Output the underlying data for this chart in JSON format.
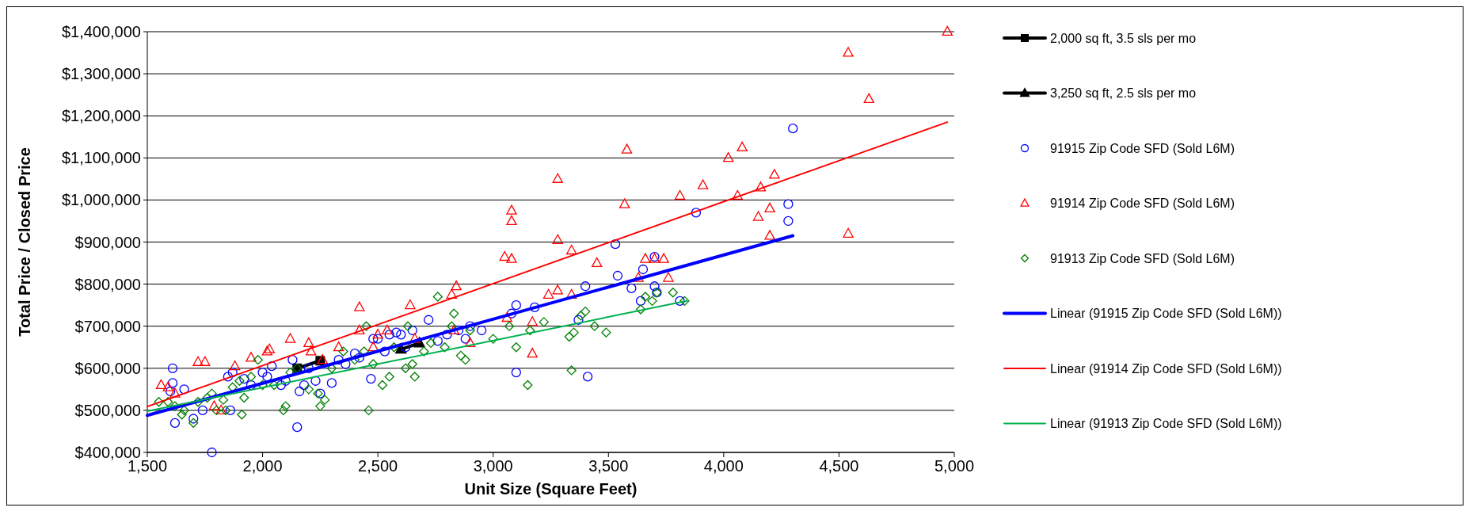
{
  "chart_data": {
    "type": "scatter",
    "xlabel": "Unit Size (Square Feet)",
    "ylabel": "Total Price / Closed Price",
    "xlim": [
      1500,
      5000
    ],
    "ylim": [
      400000,
      1400000
    ],
    "xticks": [
      {
        "value": 1500,
        "label": "1,500"
      },
      {
        "value": 2000,
        "label": "2,000"
      },
      {
        "value": 2500,
        "label": "2,500"
      },
      {
        "value": 3000,
        "label": "3,000"
      },
      {
        "value": 3500,
        "label": "3,500"
      },
      {
        "value": 4000,
        "label": "4,000"
      },
      {
        "value": 4500,
        "label": "4,500"
      },
      {
        "value": 5000,
        "label": "5,000"
      }
    ],
    "yticks": [
      {
        "value": 400000,
        "label": "$400,000"
      },
      {
        "value": 500000,
        "label": "$500,000"
      },
      {
        "value": 600000,
        "label": "$600,000"
      },
      {
        "value": 700000,
        "label": "$700,000"
      },
      {
        "value": 800000,
        "label": "$800,000"
      },
      {
        "value": 900000,
        "label": "$900,000"
      },
      {
        "value": 1000000,
        "label": "$1,000,000"
      },
      {
        "value": 1100000,
        "label": "$1,100,000"
      },
      {
        "value": 1200000,
        "label": "$1,200,000"
      },
      {
        "value": 1300000,
        "label": "$1,300,000"
      },
      {
        "value": 1400000,
        "label": "$1,400,000"
      }
    ],
    "grid": "y",
    "legend": "right",
    "series": [
      {
        "name": "2,000 sq ft, 3.5 sls per mo",
        "type": "line",
        "marker": "square",
        "color": "#000000",
        "x": [
          2150,
          2250
        ],
        "values": [
          600000,
          618000
        ]
      },
      {
        "name": "3,250 sq ft, 2.5 sls per mo",
        "type": "line",
        "marker": "triangle",
        "color": "#000000",
        "x": [
          2600,
          2680
        ],
        "values": [
          645000,
          660000
        ]
      },
      {
        "name": "91915 Zip Code SFD (Sold L6M)",
        "marker": "circle",
        "color": "#0000ff",
        "x": [
          1610,
          1610,
          1600,
          1620,
          1660,
          1700,
          1740,
          1780,
          1850,
          1860,
          1870,
          1920,
          1950,
          2000,
          2020,
          2040,
          2080,
          2100,
          2130,
          2150,
          2160,
          2180,
          2200,
          2230,
          2250,
          2300,
          2330,
          2360,
          2400,
          2420,
          2470,
          2480,
          2500,
          2530,
          2550,
          2580,
          2600,
          2620,
          2650,
          2720,
          2760,
          2800,
          2850,
          2880,
          2900,
          2950,
          3080,
          3100,
          3100,
          3180,
          3370,
          3400,
          3410,
          3530,
          3540,
          3600,
          3640,
          3650,
          3700,
          3700,
          3710,
          3810,
          3880,
          4280,
          4280,
          4300
        ],
        "values": [
          600000,
          565000,
          545000,
          470000,
          550000,
          480000,
          500000,
          400000,
          580000,
          500000,
          590000,
          575000,
          560000,
          590000,
          580000,
          605000,
          560000,
          570000,
          620000,
          460000,
          545000,
          560000,
          600000,
          570000,
          540000,
          565000,
          620000,
          610000,
          635000,
          625000,
          575000,
          670000,
          670000,
          640000,
          680000,
          685000,
          680000,
          650000,
          690000,
          715000,
          665000,
          680000,
          690000,
          670000,
          700000,
          690000,
          730000,
          750000,
          590000,
          745000,
          715000,
          795000,
          580000,
          895000,
          820000,
          790000,
          760000,
          835000,
          865000,
          795000,
          780000,
          760000,
          970000,
          990000,
          950000,
          1170000
        ]
      },
      {
        "name": "91914 Zip Code SFD (Sold L6M)",
        "marker": "triangle",
        "color": "#ff0000",
        "x": [
          1560,
          1590,
          1620,
          1720,
          1750,
          1790,
          1820,
          1880,
          1950,
          2030,
          2020,
          2120,
          2200,
          2210,
          2260,
          2330,
          2420,
          2420,
          2480,
          2500,
          2540,
          2640,
          2660,
          2820,
          2840,
          2830,
          2900,
          3050,
          3080,
          3080,
          3080,
          3060,
          3170,
          3170,
          3240,
          3280,
          3280,
          3280,
          3340,
          3340,
          3450,
          3570,
          3580,
          3630,
          3660,
          3700,
          3740,
          3760,
          3810,
          3910,
          4020,
          4080,
          4060,
          4160,
          4200,
          4200,
          4150,
          4220,
          4540,
          4540,
          4630,
          4970
        ],
        "values": [
          560000,
          555000,
          540000,
          615000,
          615000,
          510000,
          500000,
          605000,
          625000,
          645000,
          640000,
          670000,
          660000,
          640000,
          620000,
          650000,
          745000,
          690000,
          650000,
          680000,
          690000,
          750000,
          670000,
          775000,
          795000,
          690000,
          660000,
          865000,
          860000,
          975000,
          950000,
          720000,
          710000,
          635000,
          775000,
          1050000,
          905000,
          785000,
          880000,
          775000,
          850000,
          990000,
          1120000,
          815000,
          860000,
          860000,
          860000,
          815000,
          1010000,
          1035000,
          1100000,
          1125000,
          1010000,
          1030000,
          980000,
          915000,
          960000,
          1060000,
          1350000,
          920000,
          1240000,
          1400000
        ]
      },
      {
        "name": "91913 Zip Code SFD (Sold L6M)",
        "marker": "diamond",
        "color": "#008000",
        "x": [
          1550,
          1590,
          1620,
          1650,
          1660,
          1700,
          1720,
          1760,
          1780,
          1800,
          1830,
          1840,
          1870,
          1900,
          1910,
          1920,
          1950,
          1980,
          2000,
          2050,
          2090,
          2100,
          2120,
          2150,
          2200,
          2240,
          2250,
          2270,
          2300,
          2350,
          2400,
          2440,
          2450,
          2460,
          2480,
          2520,
          2550,
          2570,
          2620,
          2630,
          2650,
          2660,
          2700,
          2730,
          2760,
          2790,
          2820,
          2830,
          2860,
          2880,
          2900,
          3000,
          3070,
          3100,
          3150,
          3160,
          3220,
          3330,
          3340,
          3350,
          3380,
          3400,
          3440,
          3490,
          3640,
          3660,
          3690,
          3710,
          3780,
          3830
        ],
        "values": [
          520000,
          520000,
          510000,
          490000,
          500000,
          470000,
          520000,
          530000,
          540000,
          500000,
          525000,
          500000,
          555000,
          570000,
          490000,
          530000,
          580000,
          620000,
          560000,
          560000,
          500000,
          510000,
          590000,
          600000,
          550000,
          540000,
          510000,
          525000,
          600000,
          640000,
          620000,
          640000,
          700000,
          500000,
          610000,
          560000,
          580000,
          650000,
          600000,
          700000,
          610000,
          580000,
          640000,
          660000,
          770000,
          650000,
          700000,
          730000,
          630000,
          620000,
          690000,
          670000,
          700000,
          650000,
          560000,
          690000,
          710000,
          675000,
          595000,
          685000,
          725000,
          735000,
          700000,
          685000,
          740000,
          770000,
          760000,
          780000,
          780000,
          760000
        ]
      },
      {
        "name": "Linear (91915 Zip Code SFD (Sold L6M))",
        "type": "line",
        "marker": "none",
        "color": "#0000ff",
        "x": [
          1500,
          4300
        ],
        "values": [
          488000,
          915000
        ]
      },
      {
        "name": "Linear (91914 Zip Code SFD (Sold L6M))",
        "type": "line",
        "marker": "none",
        "color": "#ff0000",
        "x": [
          1500,
          4970
        ],
        "values": [
          509000,
          1185000
        ]
      },
      {
        "name": "Linear (91913 Zip Code SFD (Sold L6M))",
        "type": "line",
        "marker": "none",
        "color": "#00b050",
        "x": [
          1500,
          3840
        ],
        "values": [
          498000,
          760000
        ]
      }
    ]
  }
}
